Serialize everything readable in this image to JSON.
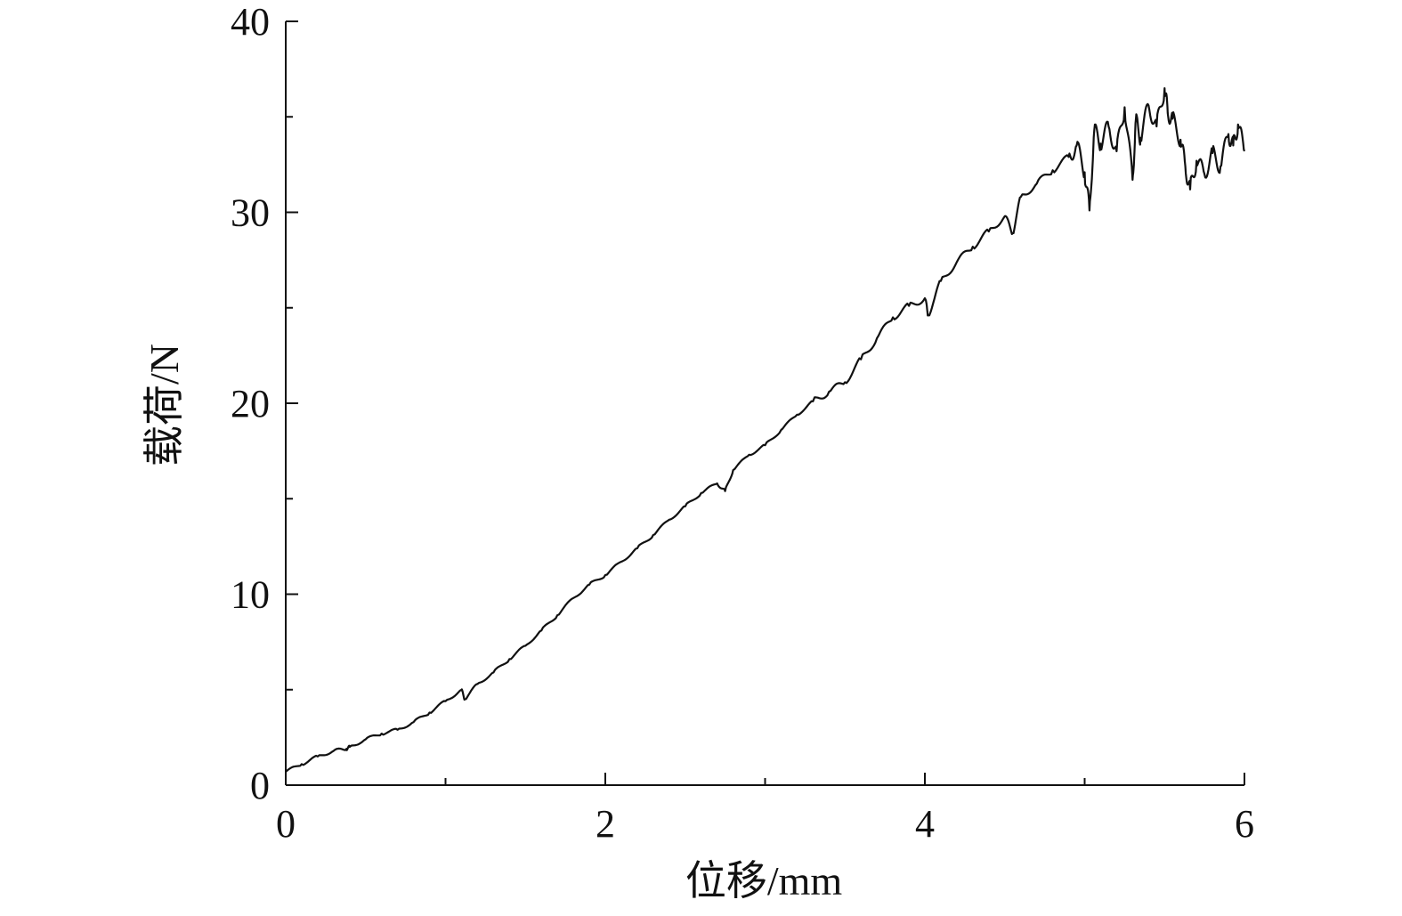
{
  "chart_data": {
    "type": "line",
    "title": "",
    "xlabel": "位移/mm",
    "ylabel": "载荷/N",
    "xlim": [
      0,
      6
    ],
    "ylim": [
      0,
      40
    ],
    "x_ticks": [
      "0",
      "2",
      "4",
      "6"
    ],
    "y_ticks": [
      "0",
      "10",
      "20",
      "30",
      "40"
    ],
    "grid": false,
    "legend": "none",
    "line_color": "#111111",
    "series": [
      {
        "x": [
          0.0,
          0.1,
          0.2,
          0.3,
          0.38,
          0.4,
          0.5,
          0.6,
          0.7,
          0.8,
          0.9,
          1.0,
          1.1,
          1.12,
          1.2,
          1.3,
          1.4,
          1.5,
          1.6,
          1.7,
          1.8,
          1.9,
          2.0,
          2.1,
          2.2,
          2.3,
          2.4,
          2.5,
          2.6,
          2.7,
          2.75,
          2.8,
          2.9,
          3.0,
          3.1,
          3.2,
          3.3,
          3.4,
          3.5,
          3.6,
          3.7,
          3.8,
          3.9,
          4.0,
          4.02,
          4.1,
          4.2,
          4.3,
          4.4,
          4.5,
          4.55,
          4.6,
          4.7,
          4.8,
          4.9,
          4.95,
          5.0,
          5.03,
          5.06,
          5.1,
          5.15,
          5.2,
          5.25,
          5.3,
          5.32,
          5.35,
          5.4,
          5.45,
          5.5,
          5.52,
          5.55,
          5.6,
          5.63,
          5.66,
          5.7,
          5.75,
          5.8,
          5.85,
          5.9,
          5.93,
          5.96,
          6.0
        ],
        "y": [
          0.7,
          1.1,
          1.5,
          1.8,
          1.9,
          2.0,
          2.4,
          2.7,
          2.9,
          3.3,
          3.8,
          4.4,
          5.0,
          4.5,
          5.3,
          5.9,
          6.6,
          7.3,
          8.1,
          8.9,
          9.8,
          10.5,
          11.0,
          11.7,
          12.4,
          13.1,
          13.9,
          14.6,
          15.3,
          15.8,
          15.4,
          16.5,
          17.3,
          17.8,
          18.6,
          19.4,
          20.1,
          20.6,
          21.1,
          22.3,
          23.4,
          24.5,
          25.1,
          25.5,
          24.6,
          26.4,
          27.4,
          28.2,
          29.0,
          29.8,
          28.9,
          30.8,
          31.5,
          32.2,
          32.9,
          33.5,
          32.1,
          30.1,
          34.3,
          33.6,
          34.5,
          33.2,
          35.5,
          31.7,
          34.8,
          33.9,
          35.6,
          34.5,
          36.5,
          35.2,
          34.9,
          33.8,
          32.4,
          31.2,
          32.7,
          32.0,
          33.1,
          32.4,
          34.1,
          33.5,
          34.6,
          33.2
        ]
      }
    ]
  }
}
